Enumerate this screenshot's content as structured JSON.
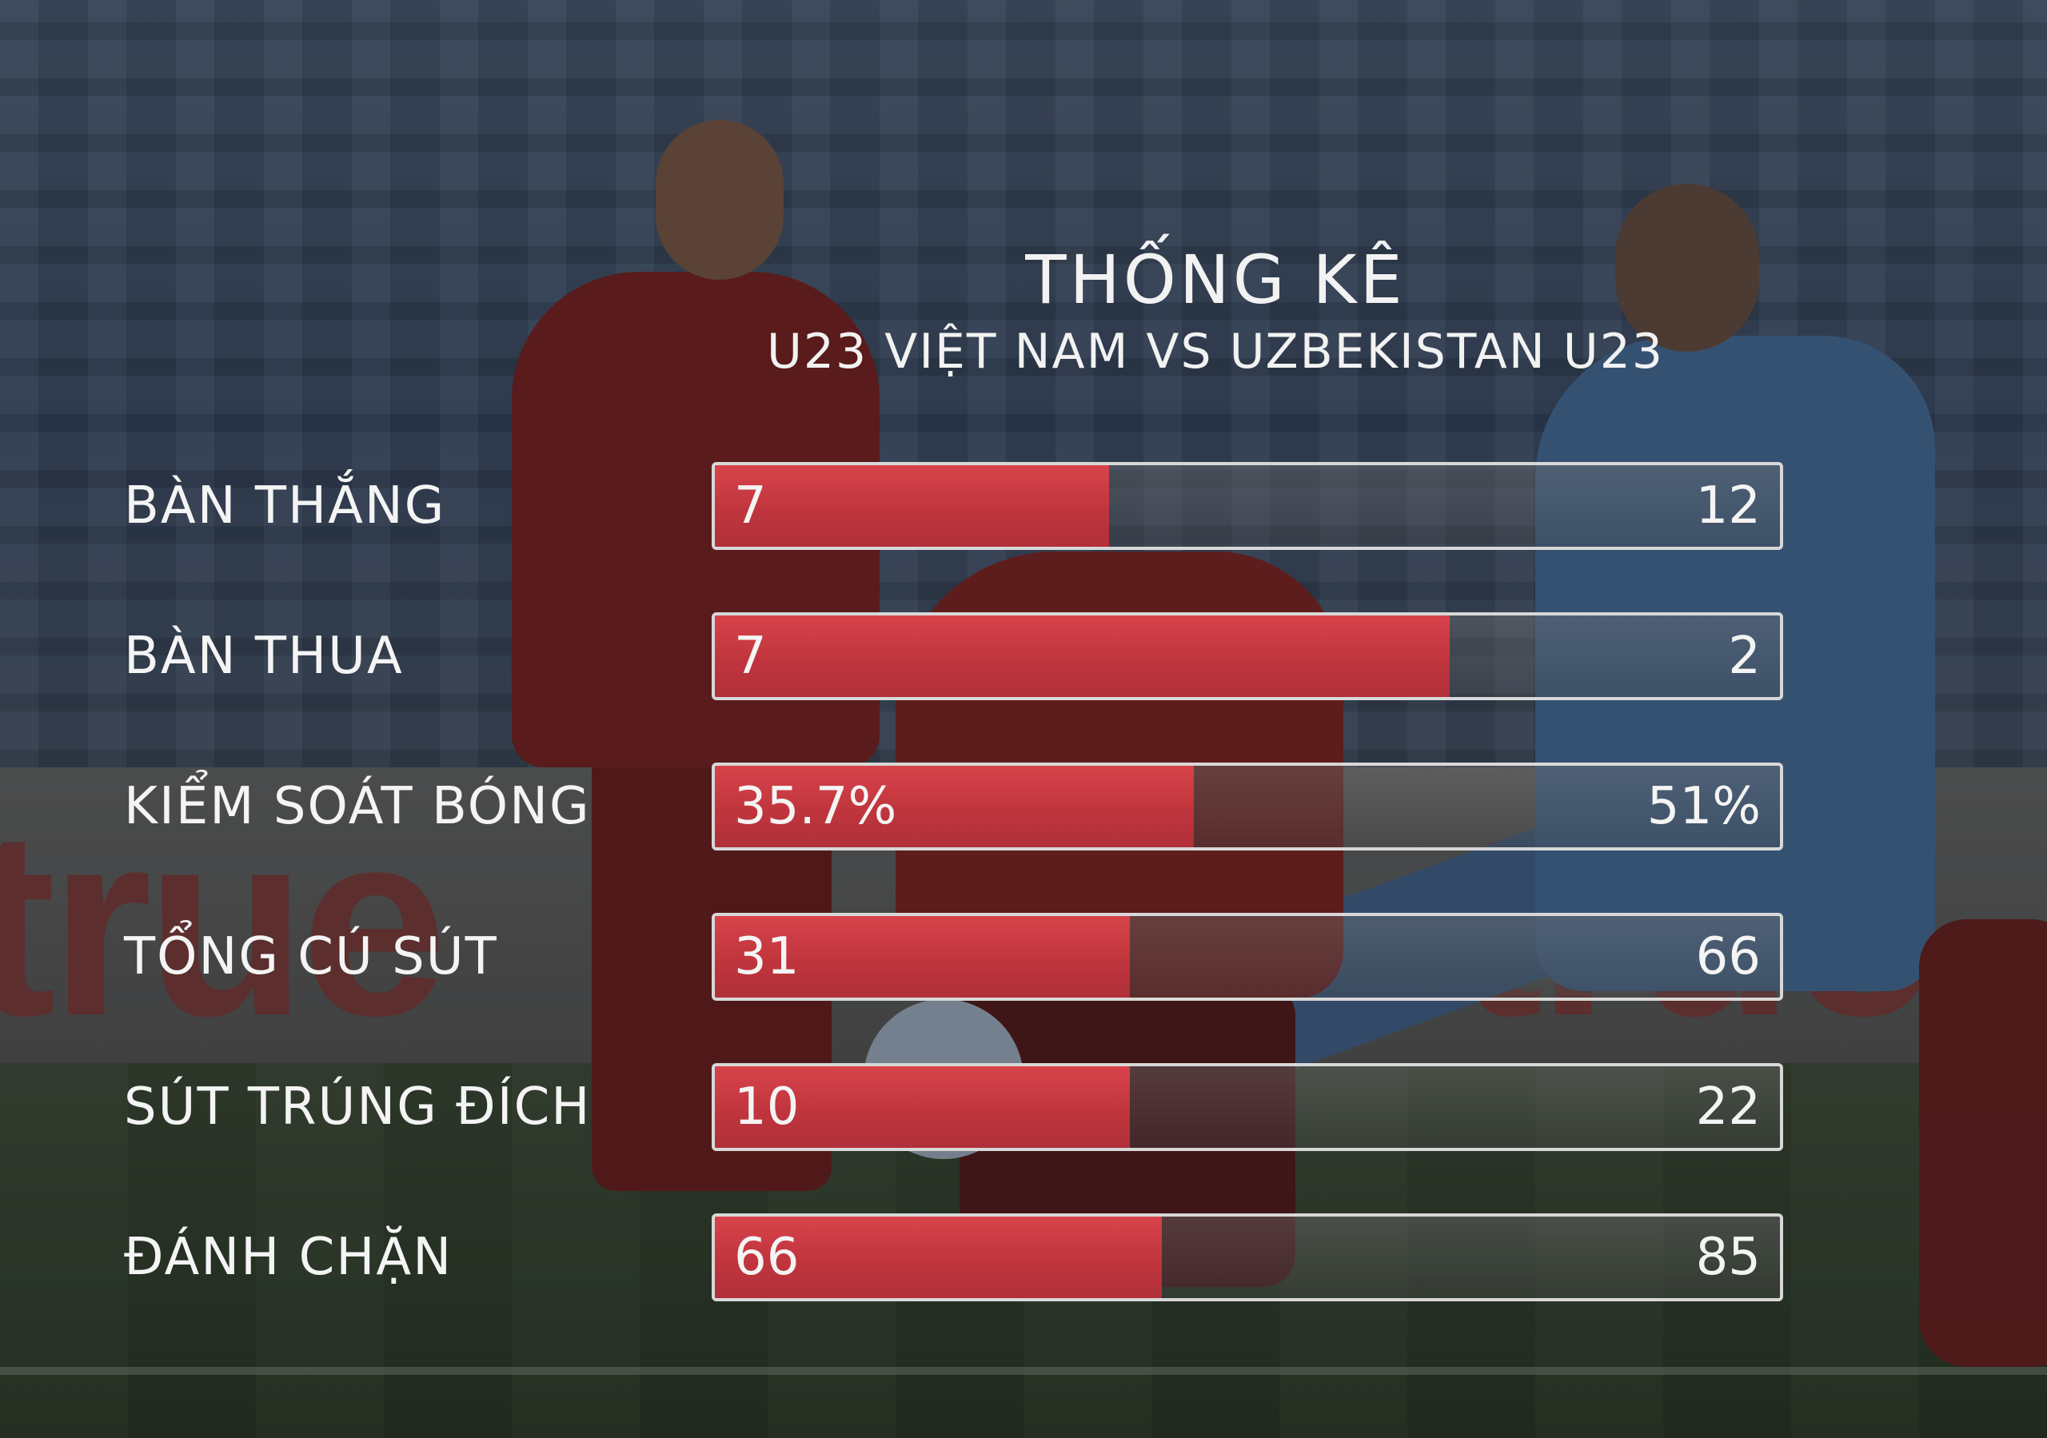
{
  "title": "THỐNG KÊ",
  "subtitle": "U23 VIỆT NAM VS UZBEKISTAN U23",
  "colors": {
    "vietnam_bar": "#c8393f",
    "uzbekistan_bar": "#808080",
    "text": "#f4f4f4"
  },
  "chart_data": {
    "type": "bar",
    "orientation": "horizontal-comparison",
    "title": "THỐNG KÊ",
    "subtitle": "U23 VIỆT NAM VS UZBEKISTAN U23",
    "categories": [
      "BÀN THẮNG",
      "BÀN THUA",
      "KIỂM SOÁT BÓNG",
      "TỔNG CÚ SÚT",
      "SÚT TRÚNG ĐÍCH",
      "ĐÁNH CHẶN"
    ],
    "series": [
      {
        "values": [
          7,
          7,
          35.7,
          31,
          10,
          66
        ],
        "labels": [
          "7",
          "7",
          "35.7%",
          "31",
          "10",
          "66"
        ]
      },
      {
        "values": [
          12,
          2,
          51,
          66,
          22,
          85
        ],
        "labels": [
          "12",
          "2",
          "51%",
          "66",
          "22",
          "85"
        ]
      }
    ],
    "left_share": [
      0.37,
      0.69,
      0.45,
      0.39,
      0.39,
      0.42
    ],
    "grid": false,
    "legend": "none"
  }
}
